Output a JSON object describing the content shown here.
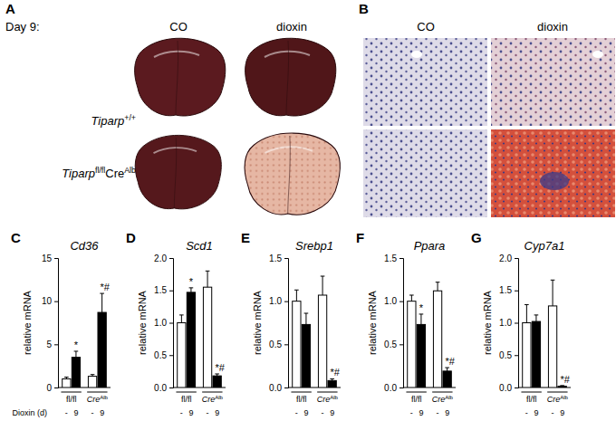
{
  "figure": {
    "panels": [
      {
        "letter": "A",
        "day": "Day 9:",
        "columns": [
          "CO",
          "dioxin"
        ],
        "rows": [
          [
            {
              "text": "Tiparp"
            },
            {
              "text": "+/+",
              "sup": true
            }
          ],
          [
            {
              "text": "Tiparp"
            },
            {
              "text": "fl/fl",
              "sup": true
            },
            {
              "text": "Cre"
            },
            {
              "text": "Alb",
              "sup": true
            }
          ]
        ]
      },
      {
        "letter": "B",
        "columns": [
          "CO",
          "dioxin"
        ]
      }
    ]
  },
  "chart_data": [
    {
      "type": "bar",
      "panel": "C",
      "title": "Cd36",
      "ylabel": "relative mRNA",
      "x_label": "Dioxin (d)",
      "categories": [
        "-",
        "9",
        "-",
        "9"
      ],
      "groups": [
        [
          {
            "text": "fl/fl"
          }
        ],
        [
          {
            "text": "Cre"
          },
          {
            "text": "Alb",
            "sup": true
          }
        ]
      ],
      "values": [
        1.0,
        3.5,
        1.3,
        8.7
      ],
      "errors": [
        0.2,
        0.7,
        0.2,
        2.2
      ],
      "colors": [
        "#ffffff",
        "#000000",
        "#ffffff",
        "#000000"
      ],
      "annotations": [
        {
          "index": 1,
          "text": "*"
        },
        {
          "index": 3,
          "text": "*#"
        }
      ],
      "ylim": [
        0,
        15
      ],
      "yticks": [
        0,
        5,
        10,
        15
      ]
    },
    {
      "type": "bar",
      "panel": "D",
      "title": "Scd1",
      "ylabel": "relative mRNA",
      "categories": [
        "-",
        "9",
        "-",
        "9"
      ],
      "groups": [
        [
          {
            "text": "fl/fl"
          }
        ],
        [
          {
            "text": "Cre"
          },
          {
            "text": "Alb",
            "sup": true
          }
        ]
      ],
      "values": [
        1.0,
        1.47,
        1.55,
        0.18
      ],
      "errors": [
        0.12,
        0.07,
        0.25,
        0.03
      ],
      "colors": [
        "#ffffff",
        "#000000",
        "#ffffff",
        "#000000"
      ],
      "annotations": [
        {
          "index": 1,
          "text": "*"
        },
        {
          "index": 3,
          "text": "*#"
        }
      ],
      "ylim": [
        0,
        2.0
      ],
      "yticks": [
        {
          "value": 0,
          "label": "0.0"
        },
        0.5,
        {
          "value": 1,
          "label": "1.0"
        },
        1.5,
        {
          "value": 2,
          "label": "2.0"
        }
      ]
    },
    {
      "type": "bar",
      "panel": "E",
      "title": "Srebp1",
      "ylabel": "relative mRNA",
      "categories": [
        "-",
        "9",
        "-",
        "9"
      ],
      "groups": [
        [
          {
            "text": "fl/fl"
          }
        ],
        [
          {
            "text": "Cre"
          },
          {
            "text": "Alb",
            "sup": true
          }
        ]
      ],
      "values": [
        1.0,
        0.73,
        1.07,
        0.08
      ],
      "errors": [
        0.13,
        0.13,
        0.22,
        0.02
      ],
      "colors": [
        "#ffffff",
        "#000000",
        "#ffffff",
        "#000000"
      ],
      "annotations": [
        {
          "index": 3,
          "text": "*#"
        }
      ],
      "ylim": [
        0,
        1.5
      ],
      "yticks": [
        {
          "value": 0,
          "label": "0.0"
        },
        0.5,
        {
          "value": 1,
          "label": "1.0"
        },
        1.5
      ]
    },
    {
      "type": "bar",
      "panel": "F",
      "title": "Ppara",
      "ylabel": "relative mRNA",
      "categories": [
        "-",
        "9",
        "-",
        "9"
      ],
      "groups": [
        [
          {
            "text": "fl/fl"
          }
        ],
        [
          {
            "text": "Cre"
          },
          {
            "text": "Alb",
            "sup": true
          }
        ]
      ],
      "values": [
        1.0,
        0.73,
        1.12,
        0.19
      ],
      "errors": [
        0.07,
        0.12,
        0.1,
        0.04
      ],
      "colors": [
        "#ffffff",
        "#000000",
        "#ffffff",
        "#000000"
      ],
      "annotations": [
        {
          "index": 1,
          "text": "*"
        },
        {
          "index": 3,
          "text": "*#"
        }
      ],
      "ylim": [
        0,
        1.5
      ],
      "yticks": [
        {
          "value": 0,
          "label": "0.0"
        },
        0.5,
        {
          "value": 1,
          "label": "1.0"
        },
        1.5
      ]
    },
    {
      "type": "bar",
      "panel": "G",
      "title": "Cyp7a1",
      "ylabel": "relative mRNA",
      "categories": [
        "-",
        "9",
        "-",
        "9"
      ],
      "groups": [
        [
          {
            "text": "fl/fl"
          }
        ],
        [
          {
            "text": "Cre"
          },
          {
            "text": "Alb",
            "sup": true
          }
        ]
      ],
      "values": [
        1.0,
        1.02,
        1.26,
        0.02
      ],
      "errors": [
        0.28,
        0.1,
        0.4,
        0.01
      ],
      "colors": [
        "#ffffff",
        "#000000",
        "#ffffff",
        "#000000"
      ],
      "annotations": [
        {
          "index": 3,
          "text": "*#"
        }
      ],
      "ylim": [
        0,
        2.0
      ],
      "yticks": [
        {
          "value": 0,
          "label": "0.0"
        },
        0.5,
        {
          "value": 1,
          "label": "1.0"
        },
        1.5,
        {
          "value": 2,
          "label": "2.0"
        }
      ]
    }
  ]
}
